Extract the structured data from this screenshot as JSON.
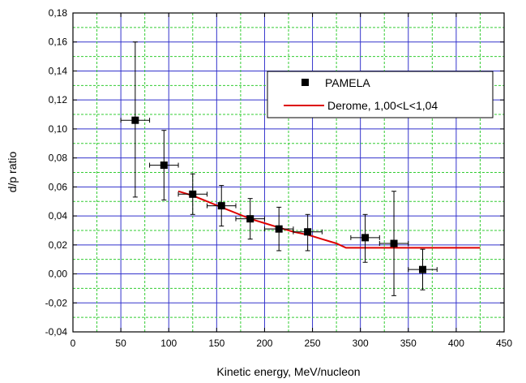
{
  "chart_data": {
    "type": "scatter",
    "xlabel": "Kinetic energy, MeV/nucleon",
    "ylabel": "d/p ratio",
    "xlim": [
      0,
      450
    ],
    "ylim": [
      -0.04,
      0.18
    ],
    "x_ticks": [
      0,
      50,
      100,
      150,
      200,
      250,
      300,
      350,
      400,
      450
    ],
    "x_tick_labels": [
      "0",
      "50",
      "100",
      "150",
      "200",
      "250",
      "300",
      "350",
      "400",
      "450"
    ],
    "y_ticks": [
      -0.04,
      -0.02,
      0.0,
      0.02,
      0.04,
      0.06,
      0.08,
      0.1,
      0.12,
      0.14,
      0.16,
      0.18
    ],
    "y_tick_labels": [
      "-0,04",
      "-0,02",
      "0,00",
      "0,02",
      "0,04",
      "0,06",
      "0,08",
      "0,10",
      "0,12",
      "0,14",
      "0,16",
      "0,18"
    ],
    "grid": true,
    "legend_position": "top-right",
    "series": [
      {
        "name": "PAMELA",
        "kind": "scatter",
        "color": "#000000",
        "points": [
          {
            "x": 65,
            "y": 0.106,
            "xerr": 15,
            "ylow": 0.053,
            "yhigh": 0.16
          },
          {
            "x": 95,
            "y": 0.075,
            "xerr": 15,
            "ylow": 0.051,
            "yhigh": 0.099
          },
          {
            "x": 125,
            "y": 0.055,
            "xerr": 15,
            "ylow": 0.041,
            "yhigh": 0.069
          },
          {
            "x": 155,
            "y": 0.047,
            "xerr": 15,
            "ylow": 0.033,
            "yhigh": 0.061
          },
          {
            "x": 185,
            "y": 0.038,
            "xerr": 15,
            "ylow": 0.024,
            "yhigh": 0.052
          },
          {
            "x": 215,
            "y": 0.031,
            "xerr": 15,
            "ylow": 0.016,
            "yhigh": 0.046
          },
          {
            "x": 245,
            "y": 0.029,
            "xerr": 15,
            "ylow": 0.016,
            "yhigh": 0.041
          },
          {
            "x": 305,
            "y": 0.025,
            "xerr": 15,
            "ylow": 0.008,
            "yhigh": 0.041
          },
          {
            "x": 335,
            "y": 0.021,
            "xerr": 15,
            "ylow": -0.015,
            "yhigh": 0.057
          },
          {
            "x": 365,
            "y": 0.003,
            "xerr": 15,
            "ylow": -0.011,
            "yhigh": 0.017
          }
        ]
      },
      {
        "name": "Derome, 1,00<L<1,04",
        "kind": "line",
        "color": "#dd0000",
        "x": [
          110,
          125,
          140,
          155,
          170,
          185,
          200,
          215,
          230,
          245,
          260,
          275,
          285,
          300,
          330,
          360,
          390,
          425
        ],
        "y": [
          0.057,
          0.054,
          0.05,
          0.046,
          0.042,
          0.038,
          0.035,
          0.032,
          0.029,
          0.027,
          0.024,
          0.021,
          0.018,
          0.018,
          0.018,
          0.018,
          0.018,
          0.018
        ]
      }
    ]
  }
}
